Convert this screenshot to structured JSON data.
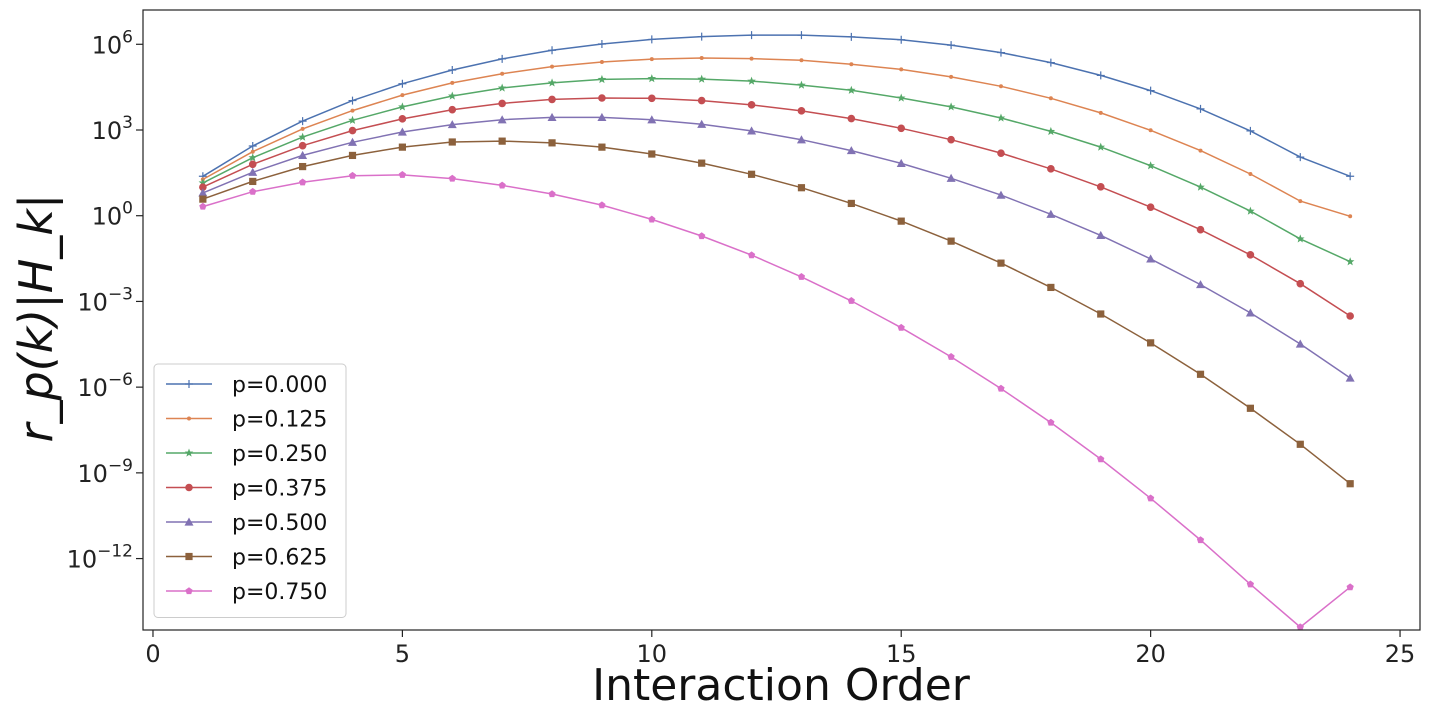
{
  "chart_data": {
    "type": "line",
    "title": "",
    "xlabel": "Interaction Order",
    "ylabel": "r_p(k)|H_k|",
    "yscale": "log",
    "xlim": [
      -0.2,
      25.4
    ],
    "ylim_exponent": [
      -14.5,
      7.2
    ],
    "xticks": [
      0,
      5,
      10,
      15,
      20,
      25
    ],
    "xtick_labels": [
      "0",
      "5",
      "10",
      "15",
      "20",
      "25"
    ],
    "ytick_exponents": [
      6,
      3,
      0,
      -3,
      -6,
      -9,
      -12
    ],
    "ytick_base": "10",
    "ytick_exponent_labels": [
      "6",
      "3",
      "0",
      "−3",
      "−6",
      "−9",
      "−12"
    ],
    "grid": false,
    "legend_position": "lower-left",
    "x": [
      1,
      2,
      3,
      4,
      5,
      6,
      7,
      8,
      9,
      10,
      11,
      12,
      13,
      14,
      15,
      16,
      17,
      18,
      19,
      20,
      21,
      22,
      23,
      24
    ],
    "series": [
      {
        "name": "p=0.000",
        "color": "#4c72b0",
        "marker": "plus",
        "log10_values": [
          1.38,
          2.44,
          3.31,
          4.03,
          4.62,
          5.1,
          5.49,
          5.79,
          6.01,
          6.17,
          6.27,
          6.32,
          6.32,
          6.26,
          6.16,
          5.97,
          5.71,
          5.36,
          4.91,
          4.38,
          3.74,
          2.97,
          2.05,
          1.38
        ]
      },
      {
        "name": "p=0.125",
        "color": "#dd8452",
        "marker": "dot",
        "log10_values": [
          1.27,
          2.24,
          3.04,
          3.68,
          4.22,
          4.65,
          4.97,
          5.22,
          5.38,
          5.48,
          5.52,
          5.5,
          5.44,
          5.3,
          5.12,
          4.86,
          4.53,
          4.11,
          3.6,
          2.99,
          2.28,
          1.46,
          0.51,
          -0.02
        ]
      },
      {
        "name": "p=0.250",
        "color": "#55a868",
        "marker": "star",
        "log10_values": [
          1.15,
          2.03,
          2.75,
          3.34,
          3.81,
          4.19,
          4.47,
          4.65,
          4.77,
          4.8,
          4.78,
          4.71,
          4.57,
          4.39,
          4.12,
          3.81,
          3.42,
          2.95,
          2.4,
          1.75,
          1.0,
          0.16,
          -0.81,
          -1.61
        ]
      },
      {
        "name": "p=0.375",
        "color": "#c44e52",
        "marker": "circle",
        "log10_values": [
          1.0,
          1.8,
          2.45,
          2.98,
          3.39,
          3.71,
          3.93,
          4.07,
          4.12,
          4.11,
          4.03,
          3.88,
          3.67,
          3.4,
          3.06,
          2.66,
          2.19,
          1.64,
          1.01,
          0.3,
          -0.49,
          -1.37,
          -2.38,
          -3.51
        ]
      },
      {
        "name": "p=0.500",
        "color": "#8172b3",
        "marker": "triangle",
        "log10_values": [
          0.8,
          1.52,
          2.11,
          2.57,
          2.93,
          3.19,
          3.36,
          3.44,
          3.44,
          3.36,
          3.2,
          2.97,
          2.66,
          2.28,
          1.83,
          1.31,
          0.72,
          0.05,
          -0.69,
          -1.51,
          -2.41,
          -3.4,
          -4.49,
          -5.68
        ]
      },
      {
        "name": "p=0.625",
        "color": "#8c613c",
        "marker": "square",
        "log10_values": [
          0.58,
          1.2,
          1.72,
          2.11,
          2.4,
          2.58,
          2.61,
          2.55,
          2.4,
          2.16,
          1.84,
          1.45,
          0.98,
          0.43,
          -0.19,
          -0.89,
          -1.66,
          -2.51,
          -3.44,
          -4.45,
          -5.55,
          -6.74,
          -8.0,
          -9.38
        ]
      },
      {
        "name": "p=0.750",
        "color": "#da70c9",
        "marker": "pentagon",
        "log10_values": [
          0.32,
          0.84,
          1.17,
          1.4,
          1.43,
          1.3,
          1.06,
          0.76,
          0.37,
          -0.13,
          -0.71,
          -1.38,
          -2.14,
          -2.98,
          -3.92,
          -4.94,
          -6.05,
          -7.24,
          -8.52,
          -9.89,
          -11.35,
          -12.9,
          -14.4,
          -13.0
        ]
      }
    ]
  }
}
